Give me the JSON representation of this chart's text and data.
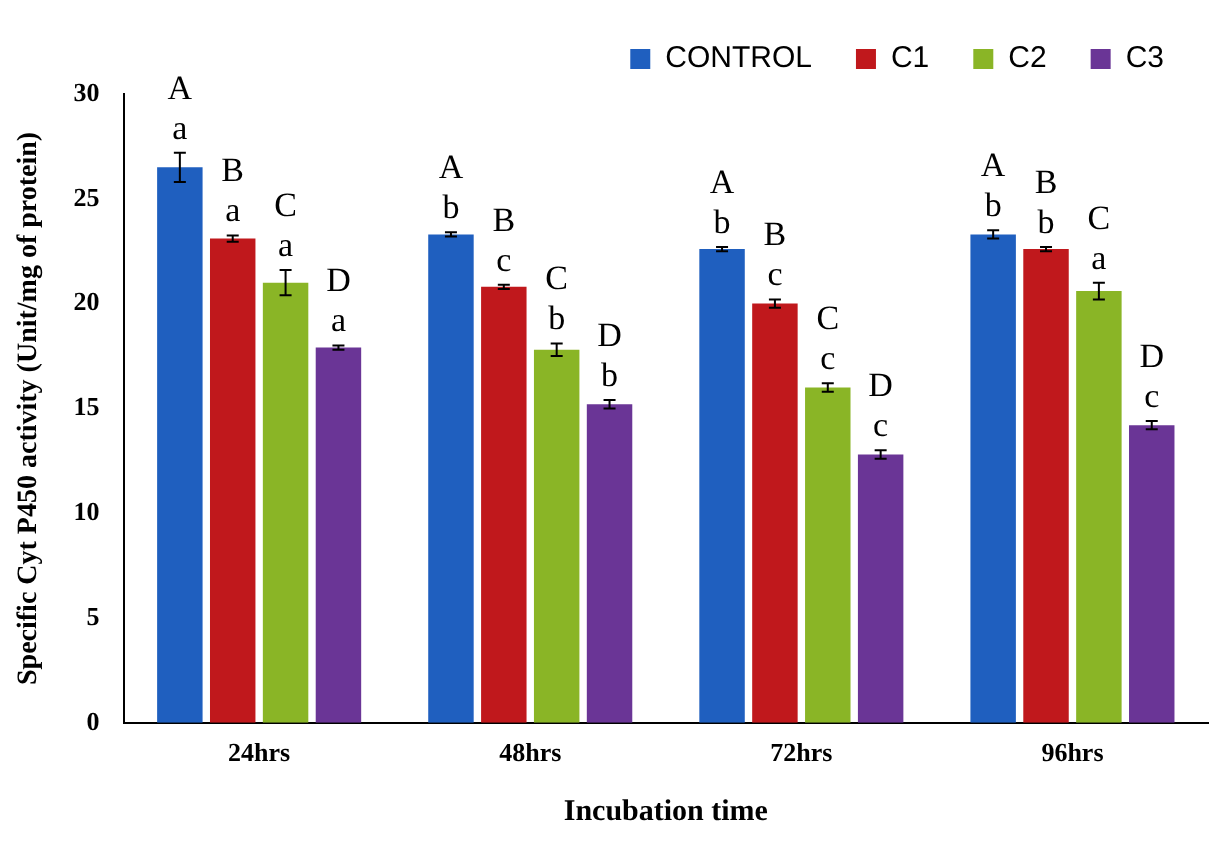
{
  "chart_data": {
    "type": "bar",
    "xlabel": "Incubation time",
    "ylabel": "Specific Cyt P450 activity (Unit/mg of protein)",
    "categories": [
      "24hrs",
      "48hrs",
      "72hrs",
      "96hrs"
    ],
    "series": [
      {
        "name": "CONTROL",
        "color": "#1f5fbf",
        "values": [
          26.5,
          23.3,
          22.6,
          23.3
        ],
        "errors": [
          0.7,
          0.1,
          0.1,
          0.2
        ],
        "value_labels": [
          "A\na",
          "A\nb",
          "A\nb",
          "A\nb"
        ]
      },
      {
        "name": "C1",
        "color": "#c0181c",
        "values": [
          23.1,
          20.8,
          20.0,
          22.6
        ],
        "errors": [
          0.15,
          0.1,
          0.2,
          0.1
        ],
        "value_labels": [
          "B\na",
          "B\nc",
          "B\nc",
          "B\nb"
        ]
      },
      {
        "name": "C2",
        "color": "#8ab526",
        "values": [
          21.0,
          17.8,
          16.0,
          20.6
        ],
        "errors": [
          0.6,
          0.3,
          0.2,
          0.4
        ],
        "value_labels": [
          "C\na",
          "C\nb",
          "C\nc",
          "C\na"
        ]
      },
      {
        "name": "C3",
        "color": "#6a3596",
        "values": [
          17.9,
          15.2,
          12.8,
          14.2
        ],
        "errors": [
          0.1,
          0.2,
          0.2,
          0.2
        ],
        "value_labels": [
          "D\na",
          "D\nb",
          "D\nc",
          "D\nc"
        ]
      }
    ],
    "ylim": [
      0,
      30
    ],
    "yticks": [
      0,
      5,
      10,
      15,
      20,
      25,
      30
    ],
    "grid": false,
    "legend": "top right"
  }
}
